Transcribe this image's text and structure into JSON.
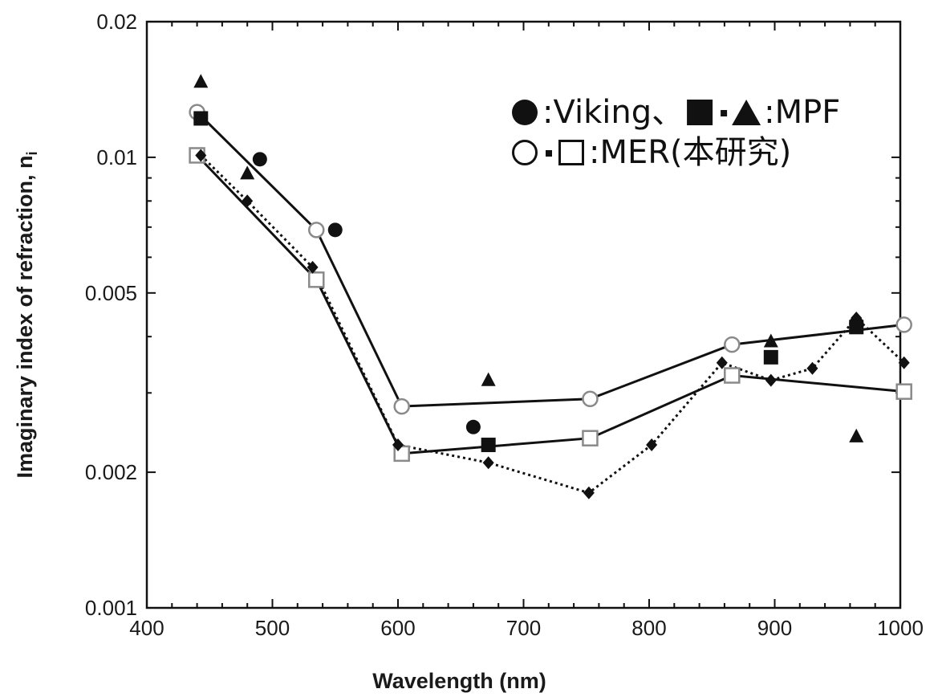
{
  "chart_data": {
    "type": "scatter",
    "xlabel": "Wavelength (nm)",
    "ylabel": "Imaginary index of refraction, n",
    "ylabel_subscript": "i",
    "xlim": [
      400,
      1000
    ],
    "ylim": [
      0.001,
      0.02
    ],
    "y_scale": "log",
    "x_ticks": [
      400,
      500,
      600,
      700,
      800,
      900,
      1000
    ],
    "x_tick_labels": [
      "400",
      "500",
      "600",
      "700",
      "800",
      "900",
      "1000"
    ],
    "y_ticks": [
      0.001,
      0.002,
      0.005,
      0.01,
      0.02
    ],
    "y_tick_labels": [
      "0.001",
      "0.002",
      "0.005",
      "0.01",
      "0.02"
    ],
    "grid": false,
    "legend": {
      "placement": "top-right",
      "lines": [
        [
          {
            "marker": "filled-circle"
          },
          {
            "text": ":Viking、"
          },
          {
            "marker": "filled-square"
          },
          {
            "marker": "small-dot"
          },
          {
            "marker": "filled-triangle"
          },
          {
            "text": ":MPF"
          }
        ],
        [
          {
            "marker": "open-circle"
          },
          {
            "marker": "small-dot"
          },
          {
            "marker": "open-square"
          },
          {
            "text": ":MER(本研究)"
          }
        ]
      ]
    },
    "series": [
      {
        "marker": "open-circle",
        "line": "solid",
        "color": "#7a7a7a",
        "x": [
          440,
          535,
          603,
          753,
          866,
          1003
        ],
        "y": [
          0.0126,
          0.0069,
          0.0028,
          0.00291,
          0.00384,
          0.00425
        ]
      },
      {
        "marker": "open-square",
        "line": "solid",
        "color": "#7a7a7a",
        "x": [
          440,
          535,
          603,
          753,
          866,
          1003
        ],
        "y": [
          0.0101,
          0.00535,
          0.0022,
          0.00238,
          0.00328,
          0.00302
        ]
      },
      {
        "marker": "filled-diamond",
        "line": "dotted",
        "color": "#111111",
        "x": [
          443,
          480,
          532,
          600,
          672,
          752,
          802,
          858,
          897,
          930,
          965,
          1003
        ],
        "y": [
          0.0101,
          0.008,
          0.0057,
          0.0023,
          0.0021,
          0.0018,
          0.0023,
          0.0035,
          0.0032,
          0.0034,
          0.0044,
          0.0035
        ]
      },
      {
        "marker": "filled-circle",
        "line": "none",
        "color": "#111111",
        "x": [
          490,
          550,
          660,
          965
        ],
        "y": [
          0.0099,
          0.0069,
          0.00252,
          0.00428
        ]
      },
      {
        "marker": "filled-square",
        "line": "none",
        "color": "#111111",
        "x": [
          443,
          672,
          897,
          965
        ],
        "y": [
          0.0122,
          0.0023,
          0.0036,
          0.0042
        ]
      },
      {
        "marker": "filled-triangle",
        "line": "none",
        "color": "#111111",
        "x": [
          443,
          480,
          672,
          897,
          965
        ],
        "y": [
          0.0147,
          0.0092,
          0.0032,
          0.0039,
          0.0024
        ]
      }
    ]
  }
}
